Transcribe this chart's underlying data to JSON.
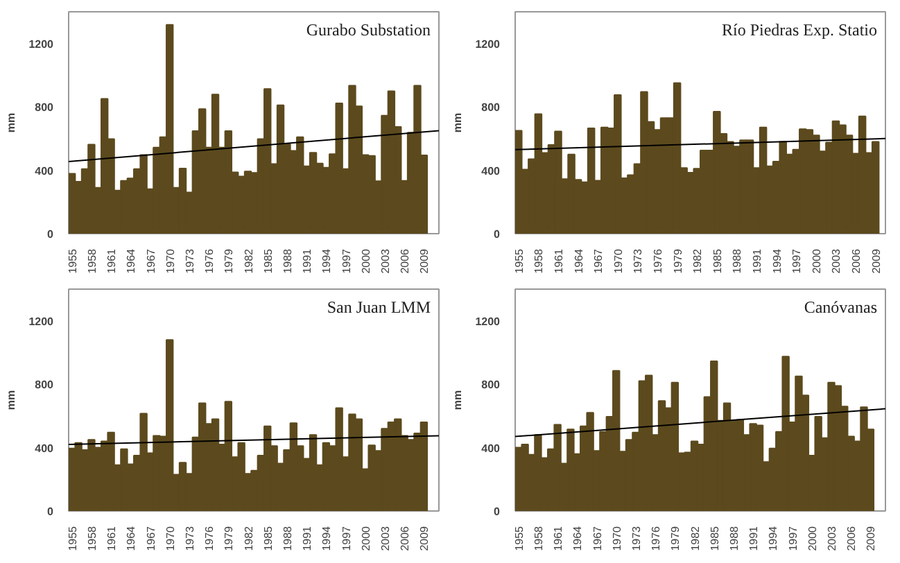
{
  "chart_data": [
    {
      "type": "bar",
      "title": "Gurabo Substation",
      "ylabel": "mm",
      "x": [
        1955,
        1956,
        1957,
        1958,
        1959,
        1960,
        1961,
        1962,
        1963,
        1964,
        1965,
        1966,
        1967,
        1968,
        1969,
        1970,
        1971,
        1972,
        1973,
        1974,
        1975,
        1976,
        1977,
        1978,
        1979,
        1980,
        1981,
        1982,
        1983,
        1984,
        1985,
        1986,
        1987,
        1988,
        1989,
        1990,
        1991,
        1992,
        1993,
        1994,
        1995,
        1996,
        1997,
        1998,
        1999,
        2000,
        2001,
        2002,
        2003,
        2004,
        2005,
        2006,
        2007,
        2008,
        2009
      ],
      "xlim": [
        1954.5,
        2011.3
      ],
      "xticks": [
        1955,
        1958,
        1961,
        1964,
        1967,
        1970,
        1973,
        1976,
        1979,
        1982,
        1985,
        1988,
        1991,
        1994,
        1997,
        2000,
        2003,
        2006,
        2009
      ],
      "ylim": [
        0,
        1400
      ],
      "yticks": [
        0,
        400,
        800,
        1200
      ],
      "grid": false,
      "series": [
        {
          "color": "#5c4a1e",
          "values": [
            378,
            328,
            408,
            562,
            290,
            851,
            597,
            272,
            334,
            349,
            408,
            497,
            281,
            544,
            609,
            1318,
            290,
            411,
            260,
            647,
            786,
            544,
            878,
            544,
            647,
            387,
            361,
            393,
            384,
            597,
            913,
            440,
            810,
            565,
            523,
            609,
            426,
            511,
            443,
            417,
            502,
            822,
            408,
            934,
            804,
            497,
            491,
            331,
            745,
            899,
            674,
            334,
            638,
            934,
            494
          ]
        },
        {
          "type": "line",
          "color": "#000000",
          "x": [
            1954.5,
            2011.3
          ],
          "values": [
            455,
            650
          ]
        }
      ]
    },
    {
      "type": "bar",
      "title": "Río Piedras Exp. Statio",
      "ylabel": "mm",
      "x": [
        1955,
        1956,
        1957,
        1958,
        1959,
        1960,
        1961,
        1962,
        1963,
        1964,
        1965,
        1966,
        1967,
        1968,
        1969,
        1970,
        1971,
        1972,
        1973,
        1974,
        1975,
        1976,
        1977,
        1978,
        1979,
        1980,
        1981,
        1982,
        1983,
        1984,
        1985,
        1986,
        1987,
        1988,
        1989,
        1990,
        1991,
        1992,
        1993,
        1994,
        1995,
        1996,
        1997,
        1998,
        1999,
        2000,
        2001,
        2002,
        2003,
        2004,
        2005,
        2006,
        2007,
        2008,
        2009
      ],
      "xlim": [
        1954.5,
        2010.5
      ],
      "xticks": [
        1955,
        1958,
        1961,
        1964,
        1967,
        1970,
        1973,
        1976,
        1979,
        1982,
        1985,
        1988,
        1991,
        1994,
        1997,
        2000,
        2003,
        2006,
        2009
      ],
      "ylim": [
        0,
        1400
      ],
      "yticks": [
        0,
        400,
        800,
        1200
      ],
      "grid": false,
      "series": [
        {
          "color": "#5c4a1e",
          "values": [
            650,
            405,
            470,
            755,
            510,
            560,
            645,
            345,
            500,
            340,
            325,
            665,
            335,
            670,
            665,
            875,
            350,
            370,
            440,
            895,
            705,
            655,
            730,
            730,
            950,
            415,
            385,
            410,
            525,
            525,
            770,
            630,
            580,
            550,
            590,
            590,
            415,
            670,
            425,
            455,
            580,
            500,
            530,
            660,
            655,
            620,
            520,
            575,
            710,
            685,
            620,
            505,
            740,
            510,
            580
          ]
        },
        {
          "type": "line",
          "color": "#000000",
          "x": [
            1954.5,
            2010.5
          ],
          "values": [
            530,
            600
          ]
        }
      ]
    },
    {
      "type": "bar",
      "title": "San Juan LMM",
      "ylabel": "mm",
      "x": [
        1955,
        1956,
        1957,
        1958,
        1959,
        1960,
        1961,
        1962,
        1963,
        1964,
        1965,
        1966,
        1967,
        1968,
        1969,
        1970,
        1971,
        1972,
        1973,
        1974,
        1975,
        1976,
        1977,
        1978,
        1979,
        1980,
        1981,
        1982,
        1983,
        1984,
        1985,
        1986,
        1987,
        1988,
        1989,
        1990,
        1991,
        1992,
        1993,
        1994,
        1995,
        1996,
        1997,
        1998,
        1999,
        2000,
        2001,
        2002,
        2003,
        2004,
        2005,
        2006,
        2007,
        2008,
        2009
      ],
      "xlim": [
        1954.5,
        2011.3
      ],
      "xticks": [
        1955,
        1958,
        1961,
        1964,
        1967,
        1970,
        1973,
        1976,
        1979,
        1982,
        1985,
        1988,
        1991,
        1994,
        1997,
        2000,
        2003,
        2006,
        2009
      ],
      "ylim": [
        0,
        1400
      ],
      "yticks": [
        0,
        400,
        800,
        1200
      ],
      "grid": false,
      "series": [
        {
          "color": "#5c4a1e",
          "values": [
            395,
            430,
            385,
            450,
            400,
            440,
            495,
            290,
            390,
            295,
            350,
            615,
            365,
            475,
            470,
            1080,
            230,
            305,
            235,
            465,
            680,
            550,
            580,
            420,
            690,
            340,
            430,
            235,
            255,
            350,
            535,
            410,
            300,
            385,
            555,
            410,
            330,
            480,
            290,
            430,
            410,
            650,
            340,
            610,
            580,
            265,
            415,
            380,
            520,
            560,
            580,
            475,
            450,
            490,
            560
          ]
        },
        {
          "type": "line",
          "color": "#000000",
          "x": [
            1954.5,
            2011.3
          ],
          "values": [
            420,
            475
          ]
        }
      ]
    },
    {
      "type": "bar",
      "title": "Canóvanas",
      "ylabel": "mm",
      "x": [
        1955,
        1956,
        1957,
        1958,
        1959,
        1960,
        1961,
        1962,
        1963,
        1964,
        1965,
        1966,
        1967,
        1968,
        1969,
        1970,
        1971,
        1972,
        1973,
        1974,
        1975,
        1976,
        1977,
        1978,
        1979,
        1980,
        1981,
        1982,
        1983,
        1984,
        1985,
        1986,
        1987,
        1988,
        1989,
        1990,
        1991,
        1992,
        1993,
        1994,
        1995,
        1996,
        1997,
        1998,
        1999,
        2000,
        2001,
        2002,
        2003,
        2004,
        2005,
        2006,
        2007,
        2008,
        2009
      ],
      "xlim": [
        1954.5,
        2011.3
      ],
      "xticks": [
        1955,
        1958,
        1961,
        1964,
        1967,
        1970,
        1973,
        1976,
        1979,
        1982,
        1985,
        1988,
        1991,
        1994,
        1997,
        2000,
        2003,
        2006,
        2009
      ],
      "ylim": [
        0,
        1400
      ],
      "yticks": [
        0,
        400,
        800,
        1200
      ],
      "grid": false,
      "series": [
        {
          "color": "#5c4a1e",
          "values": [
            400,
            420,
            355,
            480,
            335,
            390,
            545,
            300,
            515,
            360,
            535,
            620,
            380,
            500,
            595,
            885,
            375,
            450,
            495,
            820,
            855,
            480,
            695,
            650,
            810,
            365,
            370,
            440,
            420,
            720,
            945,
            570,
            680,
            570,
            575,
            480,
            550,
            540,
            310,
            395,
            500,
            975,
            560,
            850,
            730,
            350,
            595,
            460,
            810,
            790,
            660,
            470,
            440,
            655,
            515
          ]
        },
        {
          "type": "line",
          "color": "#000000",
          "x": [
            1954.5,
            2011.3
          ],
          "values": [
            470,
            645
          ]
        }
      ]
    }
  ]
}
